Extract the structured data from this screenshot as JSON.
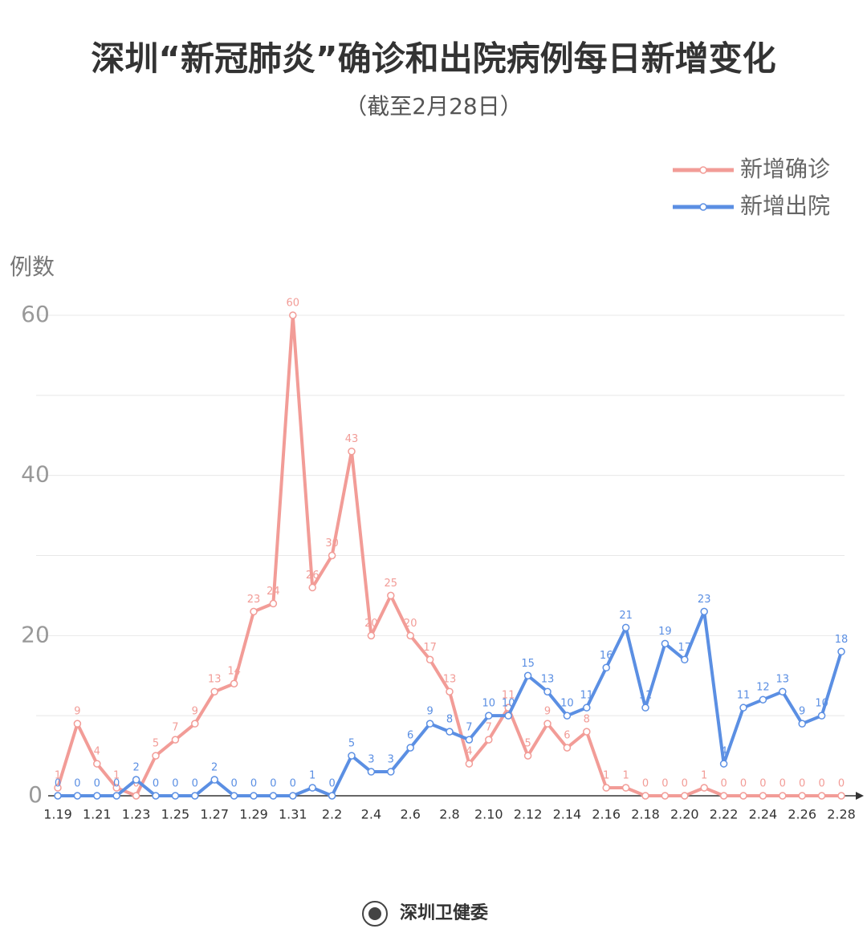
{
  "chart_data": {
    "type": "line",
    "title": "深圳“新冠肺炎”确诊和出院病例每日新增变化",
    "subtitle": "（截至2月28日）",
    "y_label": "例数",
    "source": "深圳卫健委",
    "categories": [
      "1.19",
      null,
      "1.21",
      null,
      "1.23",
      null,
      "1.25",
      null,
      "1.27",
      null,
      "1.29",
      null,
      "1.31",
      null,
      "2.2",
      null,
      "2.4",
      null,
      "2.6",
      null,
      "2.8",
      null,
      "2.10",
      null,
      "2.12",
      null,
      "2.14",
      null,
      "2.16",
      null,
      "2.18",
      null,
      "2.20",
      null,
      "2.22",
      null,
      "2.24",
      null,
      "2.26",
      null,
      "2.28"
    ],
    "series": [
      {
        "name": "新增确诊",
        "color": "#f29c97",
        "values": [
          1,
          9,
          4,
          1,
          0,
          5,
          7,
          9,
          13,
          14,
          23,
          24,
          60,
          26,
          30,
          43,
          20,
          25,
          20,
          17,
          13,
          4,
          7,
          11,
          5,
          9,
          6,
          8,
          1,
          1,
          0,
          0,
          0,
          1,
          0,
          0,
          0,
          0,
          0,
          0,
          0
        ]
      },
      {
        "name": "新增出院",
        "color": "#5b8fe3",
        "values": [
          0,
          0,
          0,
          0,
          2,
          0,
          0,
          0,
          2,
          0,
          0,
          0,
          0,
          1,
          0,
          5,
          3,
          3,
          6,
          9,
          8,
          7,
          10,
          10,
          15,
          13,
          10,
          11,
          16,
          21,
          11,
          19,
          17,
          23,
          4,
          11,
          12,
          13,
          9,
          10,
          18
        ]
      }
    ],
    "ylim": [
      0,
      60
    ],
    "yticks": [
      0,
      20,
      40,
      60
    ],
    "minor_yticks": [
      10,
      30,
      50
    ],
    "grid": true,
    "legend": "top-right"
  }
}
